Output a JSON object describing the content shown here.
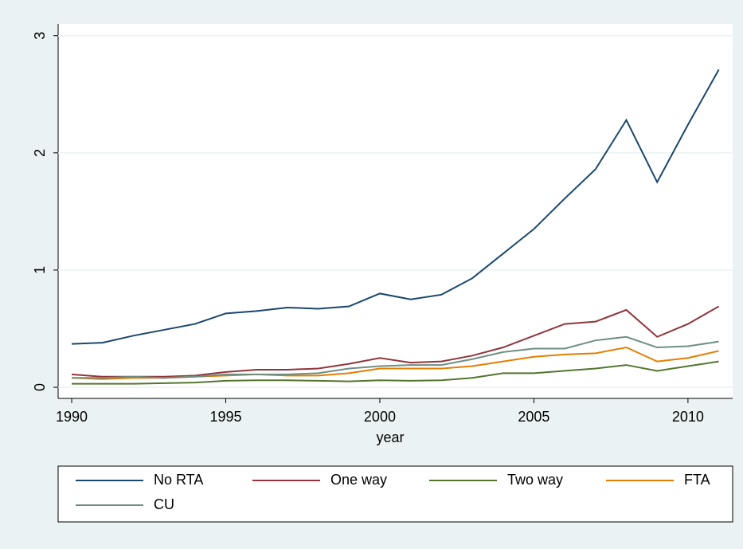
{
  "chart_data": {
    "type": "line",
    "x_label": "year",
    "x": [
      1990,
      1991,
      1992,
      1993,
      1994,
      1995,
      1996,
      1997,
      1998,
      1999,
      2000,
      2001,
      2002,
      2003,
      2004,
      2005,
      2006,
      2007,
      2008,
      2009,
      2010,
      2011
    ],
    "series": [
      {
        "name": "No RTA",
        "color": "#1a476f",
        "values": [
          0.37,
          0.38,
          0.44,
          0.49,
          0.54,
          0.63,
          0.65,
          0.68,
          0.67,
          0.69,
          0.8,
          0.75,
          0.79,
          0.93,
          1.14,
          1.35,
          1.61,
          1.86,
          2.28,
          1.75,
          2.24,
          2.71
        ]
      },
      {
        "name": "One way",
        "color": "#90353b",
        "values": [
          0.11,
          0.09,
          0.09,
          0.09,
          0.1,
          0.13,
          0.15,
          0.15,
          0.16,
          0.2,
          0.25,
          0.21,
          0.22,
          0.27,
          0.34,
          0.44,
          0.54,
          0.56,
          0.66,
          0.43,
          0.54,
          0.69
        ]
      },
      {
        "name": "Two way",
        "color": "#55752f",
        "values": [
          0.03,
          0.03,
          0.03,
          0.035,
          0.04,
          0.055,
          0.06,
          0.06,
          0.055,
          0.05,
          0.06,
          0.055,
          0.06,
          0.08,
          0.12,
          0.12,
          0.14,
          0.16,
          0.19,
          0.14,
          0.18,
          0.22
        ]
      },
      {
        "name": "FTA",
        "color": "#e37e00",
        "values": [
          0.08,
          0.07,
          0.08,
          0.08,
          0.09,
          0.1,
          0.11,
          0.1,
          0.1,
          0.12,
          0.16,
          0.16,
          0.16,
          0.18,
          0.22,
          0.26,
          0.28,
          0.29,
          0.34,
          0.22,
          0.25,
          0.31
        ]
      },
      {
        "name": "CU",
        "color": "#6e8e84",
        "values": [
          0.08,
          0.08,
          0.09,
          0.08,
          0.09,
          0.11,
          0.11,
          0.11,
          0.12,
          0.16,
          0.18,
          0.19,
          0.19,
          0.24,
          0.3,
          0.33,
          0.33,
          0.4,
          0.43,
          0.34,
          0.35,
          0.39
        ]
      }
    ],
    "xlim": [
      1989.56,
      2011.45
    ],
    "xticks": [
      1990,
      1995,
      2000,
      2005,
      2010
    ],
    "ylim": [
      -0.095,
      3.1
    ],
    "yticks": [
      0,
      1,
      2,
      3
    ],
    "grid": true
  }
}
